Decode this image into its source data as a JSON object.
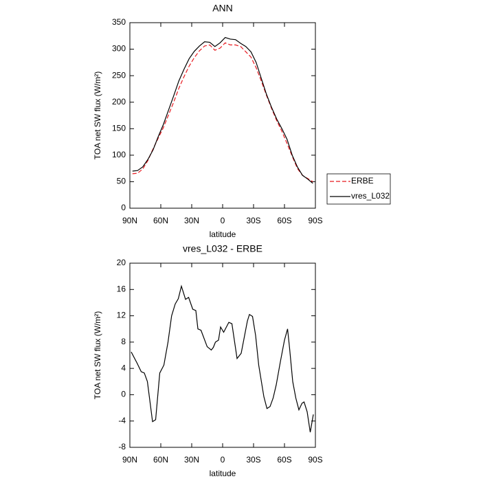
{
  "chart_data": [
    {
      "type": "line",
      "title": "ANN",
      "xlabel": "latitude",
      "ylabel": "TOA net SW flux (W/m²)",
      "legend": "right",
      "x": [
        87.5,
        82.5,
        77.5,
        72.5,
        67.5,
        62.5,
        57.5,
        52.5,
        47.5,
        42.5,
        37.5,
        32.5,
        27.5,
        22.5,
        17.5,
        12.5,
        7.5,
        2.5,
        -2.5,
        -7.5,
        -12.5,
        -17.5,
        -22.5,
        -27.5,
        -32.5,
        -37.5,
        -42.5,
        -47.5,
        -52.5,
        -57.5,
        -62.5,
        -67.5,
        -72.5,
        -77.5,
        -82.5,
        -87.5
      ],
      "series": [
        {
          "name": "ERBE",
          "color": "#e8191f",
          "dashed": true,
          "values": [
            65,
            66,
            74,
            90,
            112,
            132,
            152,
            176,
            200,
            226,
            248,
            268,
            284,
            297,
            306,
            308,
            298,
            302,
            312,
            308,
            308,
            305,
            295,
            285,
            265,
            240,
            213,
            188,
            165,
            145,
            122,
            98,
            75,
            62,
            56,
            50
          ]
        },
        {
          "name": "vres_L032",
          "color": "#000000",
          "dashed": false,
          "values": [
            70,
            71,
            78,
            92,
            110,
            135,
            158,
            185,
            212,
            240,
            262,
            282,
            296,
            306,
            314,
            313,
            305,
            312,
            322,
            319,
            318,
            311,
            305,
            295,
            275,
            245,
            215,
            190,
            168,
            150,
            130,
            100,
            78,
            62,
            55,
            47
          ]
        }
      ],
      "xlim": [
        90,
        -90
      ],
      "xticks": [
        {
          "value": 90,
          "label": "90N"
        },
        {
          "value": 60,
          "label": "60N"
        },
        {
          "value": 30,
          "label": "30N"
        },
        0,
        {
          "value": -30,
          "label": "30S"
        },
        {
          "value": -60,
          "label": "60S"
        },
        {
          "value": -90,
          "label": "90S"
        }
      ],
      "ylim": [
        0,
        350
      ],
      "yticks": [
        0,
        50,
        100,
        150,
        200,
        250,
        300,
        350
      ]
    },
    {
      "type": "line",
      "title": "vres_L032 - ERBE",
      "xlabel": "latitude",
      "ylabel": "TOA net SW flux (W/m²)",
      "x": [
        88.7,
        83,
        79,
        76,
        73,
        68,
        65,
        61,
        57,
        53,
        49.5,
        46,
        43,
        40,
        36,
        33,
        29,
        26,
        24,
        21,
        15,
        11,
        9,
        7,
        4,
        2,
        -1,
        -6,
        -9,
        -14,
        -18,
        -24,
        -26,
        -29,
        -32,
        -35,
        -40,
        -43,
        -46,
        -49,
        -52,
        -56,
        -60,
        -63,
        -65,
        -68,
        -71,
        -74,
        -77,
        -79,
        -82,
        -85,
        -88
      ],
      "series": [
        {
          "color": "#000000",
          "dashed": false,
          "values": [
            6.5,
            4.8,
            3.5,
            3.3,
            2,
            -4.1,
            -3.8,
            3.3,
            4.5,
            8,
            12,
            13.8,
            14.6,
            16.5,
            14.5,
            14.8,
            13,
            12.8,
            10,
            9.8,
            7.3,
            6.8,
            7.2,
            8,
            8.3,
            10.3,
            9.5,
            11,
            10.8,
            5.5,
            6.3,
            11.2,
            12.2,
            11.9,
            9,
            4.5,
            -0.3,
            -2.1,
            -1.8,
            -0.5,
            1.5,
            5,
            8.3,
            10,
            7,
            2,
            -0.5,
            -2.3,
            -1.3,
            -1.1,
            -2.6,
            -5.7,
            -3
          ]
        }
      ],
      "xlim": [
        90,
        -90
      ],
      "xticks": [
        {
          "value": 90,
          "label": "90N"
        },
        {
          "value": 60,
          "label": "60N"
        },
        {
          "value": 30,
          "label": "30N"
        },
        0,
        {
          "value": -30,
          "label": "30S"
        },
        {
          "value": -60,
          "label": "60S"
        },
        {
          "value": -90,
          "label": "90S"
        }
      ],
      "ylim": [
        -8,
        20
      ],
      "yticks": [
        -8,
        -4,
        0,
        4,
        8,
        12,
        16,
        20
      ]
    }
  ]
}
